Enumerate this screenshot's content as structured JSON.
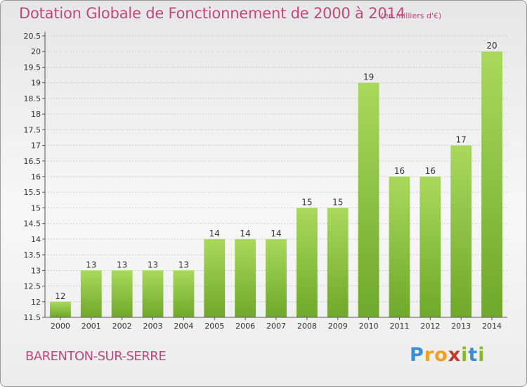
{
  "title": "Dotation Globale de Fonctionnement de 2000 à 2014",
  "unit_note": "(en milliers d'€)",
  "commune": "BARENTON-SUR-SERRE",
  "logo": {
    "letters": [
      "P",
      "r",
      "o",
      "x",
      "i",
      "t",
      "i"
    ],
    "colors": [
      "#3a8fd0",
      "#f0a020",
      "#f0a020",
      "#c03a2a",
      "#8ab82a",
      "#3a8fd0",
      "#8ab82a"
    ]
  },
  "colors": {
    "bar_light": "#a9d95b",
    "bar_dark": "#6fa82a",
    "text": "#c1487a",
    "axis_text": "#333333",
    "grid": "#cfcfcf"
  },
  "chart_data": {
    "type": "bar",
    "categories": [
      "2000",
      "2001",
      "2002",
      "2003",
      "2004",
      "2005",
      "2006",
      "2007",
      "2008",
      "2009",
      "2010",
      "2011",
      "2012",
      "2013",
      "2014"
    ],
    "values": [
      12,
      13,
      13,
      13,
      13,
      14,
      14,
      14,
      15,
      15,
      19,
      16,
      16,
      17,
      20
    ],
    "data_labels": [
      "12",
      "13",
      "13",
      "13",
      "13",
      "14",
      "14",
      "14",
      "15",
      "15",
      "19",
      "16",
      "16",
      "17",
      "20"
    ],
    "yticks": [
      "11.5",
      "12",
      "12.5",
      "13",
      "13.5",
      "14",
      "14.5",
      "15",
      "15.5",
      "16",
      "16.5",
      "17",
      "17.5",
      "18",
      "18.5",
      "19",
      "19.5",
      "20",
      "20.5"
    ],
    "ylim": [
      11.5,
      20.5
    ],
    "grid": true,
    "xlabel": "",
    "ylabel": ""
  }
}
